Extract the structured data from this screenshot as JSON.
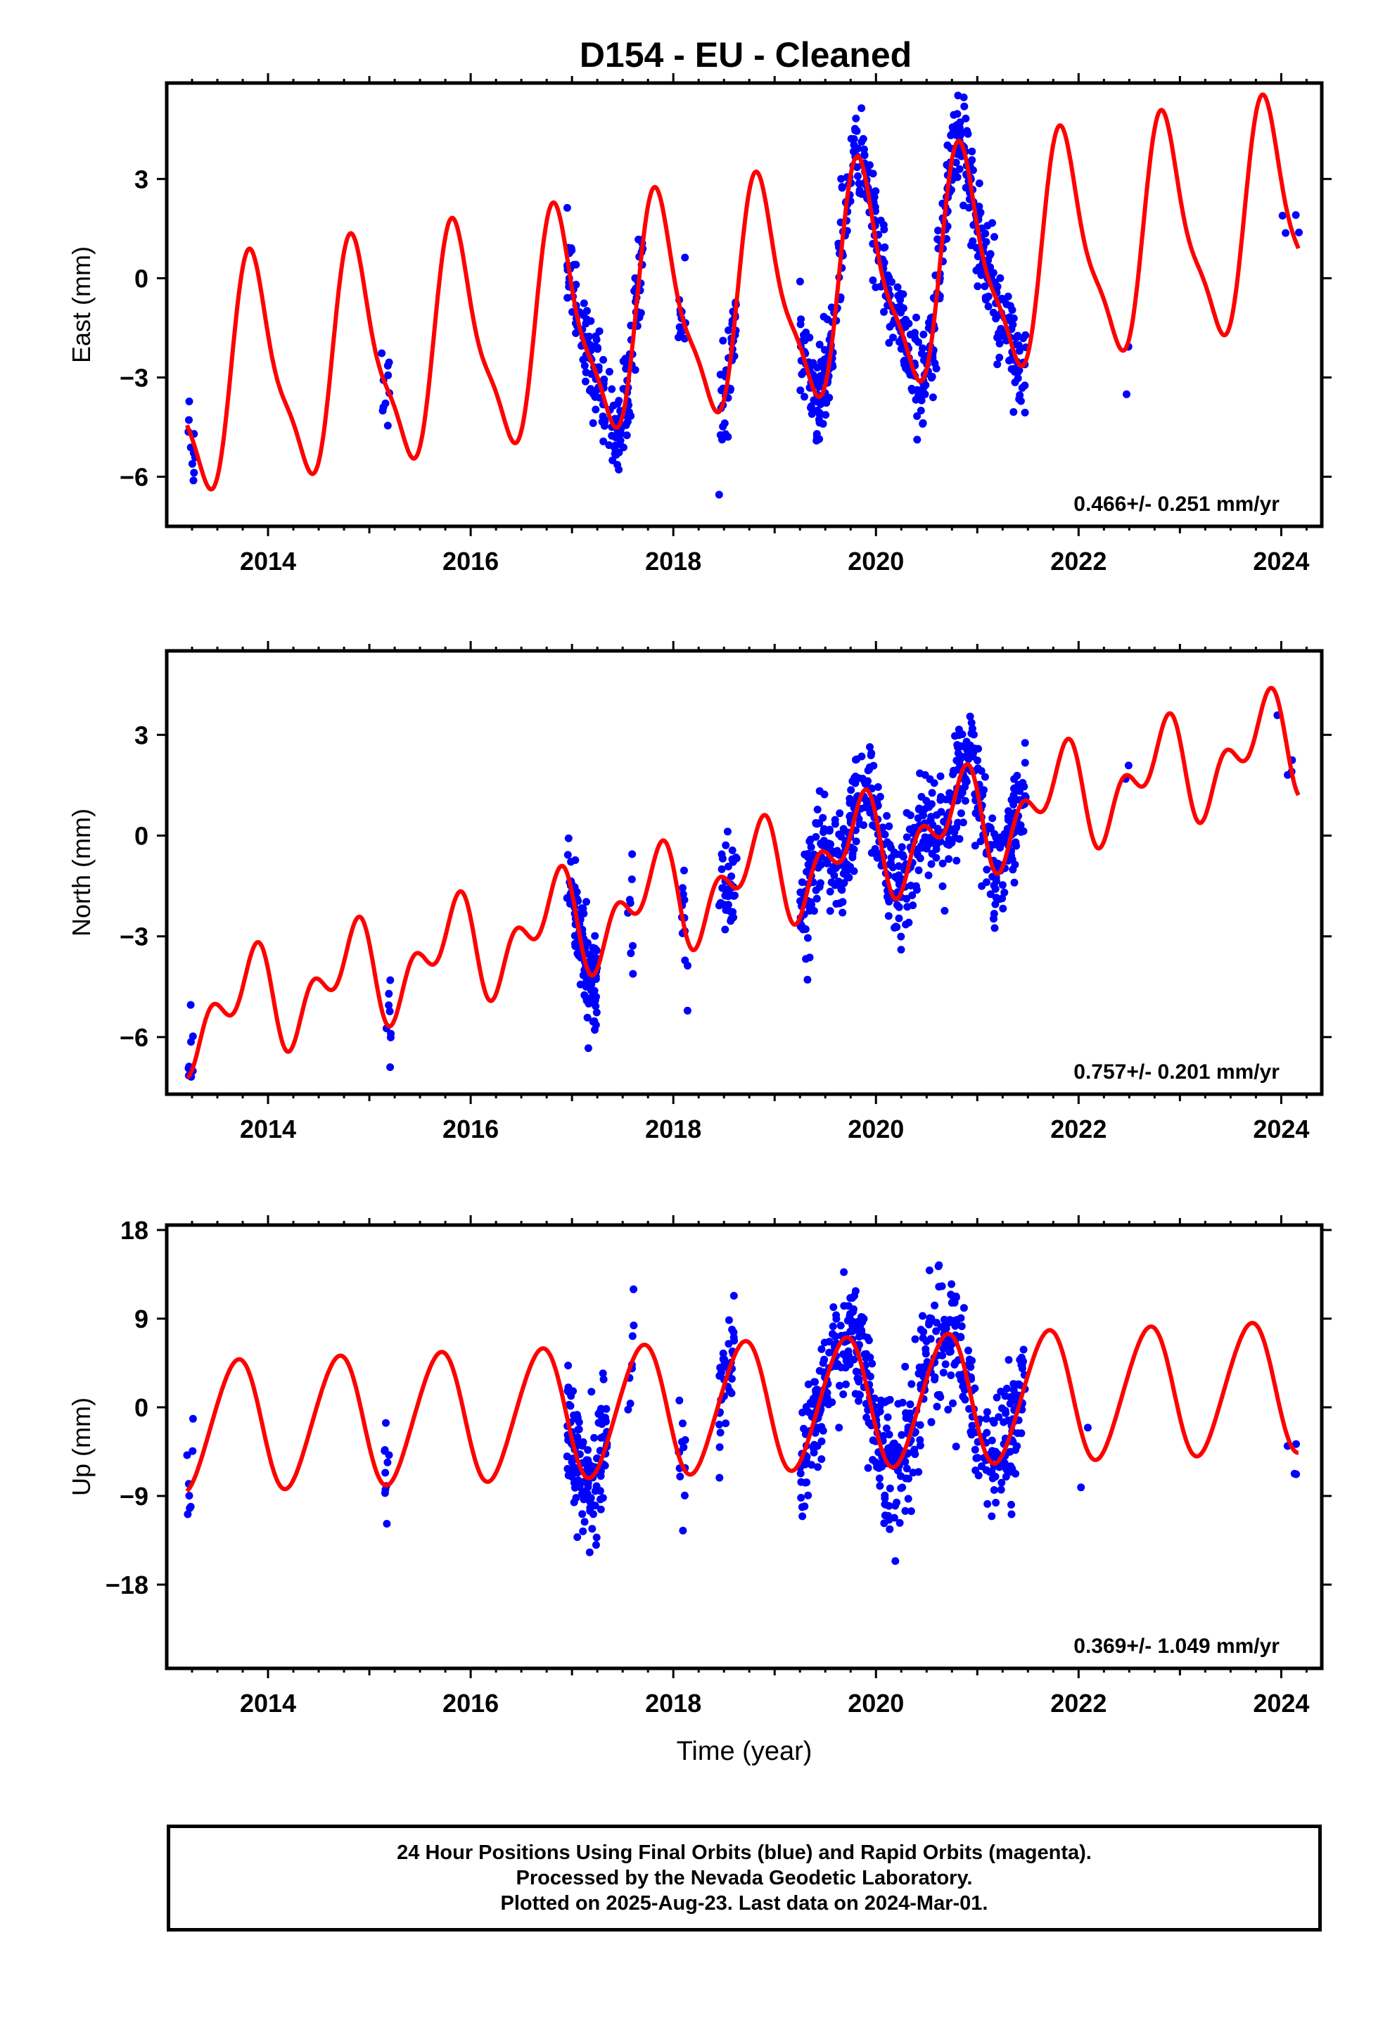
{
  "title": "D154  - EU - Cleaned",
  "colors": {
    "data": "#0000ff",
    "model": "#ff0000",
    "frame": "#000000"
  },
  "chart_data": [
    {
      "type": "scatter",
      "panel": "east",
      "ylabel": "East (mm)",
      "xlabel": "",
      "xlim": [
        2013.0,
        2024.4
      ],
      "ylim": [
        -7.5,
        5.9
      ],
      "xticks": [
        2014,
        2016,
        2018,
        2020,
        2022,
        2024
      ],
      "yticks": [
        -6,
        -3,
        0,
        3
      ],
      "rate_label": "0.466+/- 0.251 mm/yr",
      "model_curve": {
        "name": "",
        "offset": -3.35,
        "rate": 0.466,
        "amp1": 3.2,
        "phase1": 0.61,
        "amp2": 0.9,
        "phase2": 0.15,
        "tref": 2013.0
      },
      "data_segments": [
        {
          "start": 2013.2,
          "end": 2013.28,
          "density": 10
        },
        {
          "start": 2015.1,
          "end": 2015.2,
          "density": 10
        },
        {
          "start": 2016.95,
          "end": 2017.7,
          "density": 170
        },
        {
          "start": 2018.05,
          "end": 2018.12,
          "density": 12
        },
        {
          "start": 2018.45,
          "end": 2018.63,
          "density": 40
        },
        {
          "start": 2019.25,
          "end": 2021.48,
          "density": 560
        },
        {
          "start": 2022.45,
          "end": 2022.5,
          "density": 2
        },
        {
          "start": 2024.0,
          "end": 2024.18,
          "density": 4
        }
      ],
      "noise": 0.9
    },
    {
      "type": "scatter",
      "panel": "north",
      "ylabel": "North (mm)",
      "xlabel": "",
      "xlim": [
        2013.0,
        2024.4
      ],
      "ylim": [
        -7.7,
        5.5
      ],
      "xticks": [
        2014,
        2016,
        2018,
        2020,
        2022,
        2024
      ],
      "yticks": [
        -6,
        -3,
        0,
        3
      ],
      "rate_label": "0.757+/- 0.201 mm/yr",
      "model_curve": {
        "name": "",
        "offset": -5.6,
        "rate": 0.757,
        "amp1": 1.1,
        "phase1": 0.55,
        "amp2": 0.9,
        "phase2": 0.3,
        "tref": 2013.0
      },
      "data_segments": [
        {
          "start": 2013.2,
          "end": 2013.26,
          "density": 8
        },
        {
          "start": 2015.15,
          "end": 2015.22,
          "density": 8
        },
        {
          "start": 2016.95,
          "end": 2017.25,
          "density": 120
        },
        {
          "start": 2017.55,
          "end": 2017.62,
          "density": 8
        },
        {
          "start": 2018.08,
          "end": 2018.15,
          "density": 12
        },
        {
          "start": 2018.45,
          "end": 2018.63,
          "density": 40
        },
        {
          "start": 2019.25,
          "end": 2021.48,
          "density": 560
        },
        {
          "start": 2022.45,
          "end": 2022.55,
          "density": 2
        },
        {
          "start": 2023.95,
          "end": 2024.18,
          "density": 4
        }
      ],
      "noise": 1.0
    },
    {
      "type": "scatter",
      "panel": "up",
      "ylabel": "Up (mm)",
      "xlabel": "Time (year)",
      "xlim": [
        2013.0,
        2024.4
      ],
      "ylim": [
        -26.5,
        18.5
      ],
      "xticks": [
        2014,
        2016,
        2018,
        2020,
        2022,
        2024
      ],
      "yticks": [
        -18,
        -9,
        0,
        9,
        18
      ],
      "rate_label": "0.369+/- 1.049 mm/yr",
      "model_curve": {
        "name": "",
        "offset": -2.0,
        "rate": 0.369,
        "amp1": 6.6,
        "phase1": 0.44,
        "amp2": 0.5,
        "phase2": 0.2,
        "tref": 2013.0
      },
      "data_segments": [
        {
          "start": 2013.2,
          "end": 2013.26,
          "density": 8
        },
        {
          "start": 2015.15,
          "end": 2015.2,
          "density": 10
        },
        {
          "start": 2016.95,
          "end": 2017.35,
          "density": 140
        },
        {
          "start": 2017.55,
          "end": 2017.62,
          "density": 8
        },
        {
          "start": 2018.05,
          "end": 2018.12,
          "density": 12
        },
        {
          "start": 2018.45,
          "end": 2018.6,
          "density": 40
        },
        {
          "start": 2019.25,
          "end": 2021.48,
          "density": 560
        },
        {
          "start": 2022.0,
          "end": 2022.6,
          "density": 2
        },
        {
          "start": 2024.05,
          "end": 2024.15,
          "density": 4
        }
      ],
      "noise": 4.0
    }
  ],
  "footer": {
    "line1": "24 Hour Positions Using Final Orbits (blue) and Rapid Orbits (magenta).",
    "line2": "Processed by the Nevada Geodetic Laboratory.",
    "line3": "Plotted on 2025-Aug-23. Last data on 2024-Mar-01."
  }
}
